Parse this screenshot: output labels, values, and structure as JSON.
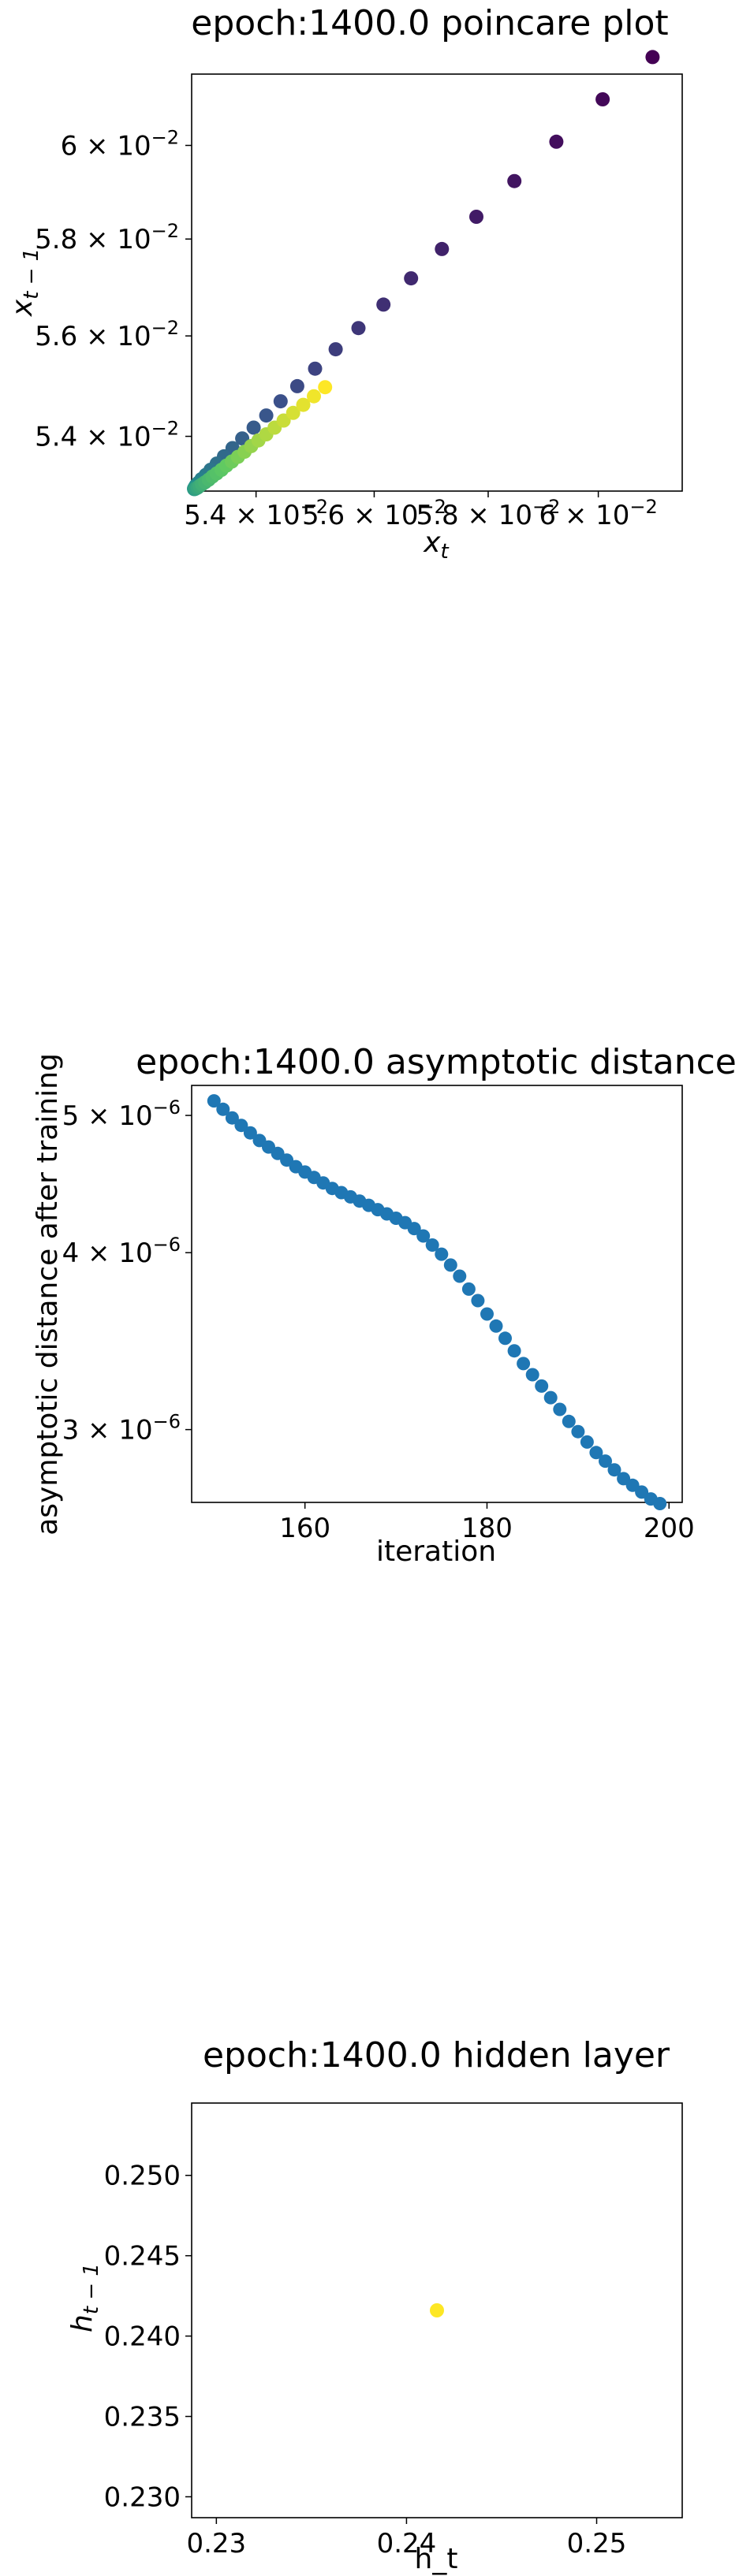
{
  "charts": [
    {
      "chart_data": {
        "type": "scatter",
        "title": "epoch:1400.0 poincare plot",
        "xlabel": "x_t",
        "ylabel": "x_{t−1}",
        "xscale": "log",
        "yscale": "log",
        "xlim": [
          0.05294,
          0.06157
        ],
        "ylim": [
          0.05294,
          0.06157
        ],
        "x_ticks": [
          {
            "mantissa": "5.4",
            "value": 0.054
          },
          {
            "mantissa": "5.6",
            "value": 0.056
          },
          {
            "mantissa": "5.8",
            "value": 0.058
          },
          {
            "mantissa": "6",
            "value": 0.06
          }
        ],
        "y_ticks": [
          {
            "mantissa": "5.4",
            "value": 0.054
          },
          {
            "mantissa": "5.6",
            "value": 0.056
          },
          {
            "mantissa": "5.8",
            "value": 0.058
          },
          {
            "mantissa": "6",
            "value": 0.06
          }
        ],
        "tick_base": "10",
        "tick_exponent": "−2",
        "colormap": [
          "#440154",
          "#3b528b",
          "#21918c",
          "#5ec962",
          "#fde725"
        ],
        "colors_note": "points colored by iteration (viridis)",
        "x": [
          0.06101,
          0.06008,
          0.05923,
          0.05847,
          0.05779,
          0.05718,
          0.05664,
          0.05616,
          0.05573,
          0.05534,
          0.05499,
          0.05469,
          0.05441,
          0.05417,
          0.05396,
          0.05377,
          0.05361,
          0.05347,
          0.05335,
          0.05325,
          0.05317,
          0.0531,
          0.05305,
          0.05301,
          0.05299,
          0.05298,
          0.05298,
          0.05299,
          0.05301,
          0.05304,
          0.05307,
          0.05311,
          0.05316,
          0.05322,
          0.05328,
          0.05335,
          0.05343,
          0.05351,
          0.0536,
          0.0537,
          0.05381,
          0.05392,
          0.05404,
          0.05417,
          0.05431,
          0.05446,
          0.05462,
          0.05479,
          0.05497,
          0.05516
        ],
        "y": [
          0.06195,
          0.06101,
          0.06008,
          0.05923,
          0.05847,
          0.05779,
          0.05718,
          0.05664,
          0.05616,
          0.05573,
          0.05534,
          0.05499,
          0.05469,
          0.05441,
          0.05417,
          0.05396,
          0.05377,
          0.05361,
          0.05347,
          0.05335,
          0.05325,
          0.05317,
          0.0531,
          0.05305,
          0.05301,
          0.05299,
          0.05298,
          0.05298,
          0.05299,
          0.05301,
          0.05304,
          0.05307,
          0.05311,
          0.05316,
          0.05322,
          0.05328,
          0.05335,
          0.05343,
          0.05351,
          0.0536,
          0.0537,
          0.05381,
          0.05392,
          0.05404,
          0.05417,
          0.05431,
          0.05446,
          0.05462,
          0.05479,
          0.05497
        ]
      }
    },
    {
      "chart_data": {
        "type": "scatter",
        "title": "epoch:1400.0 asymptotic distance",
        "xlabel": "iteration",
        "ylabel": "asymptotic distance after training",
        "yscale": "log",
        "xlim": [
          147.55,
          201.45
        ],
        "ylim": [
          2.665e-06,
          5.25e-06
        ],
        "x_ticks": [
          160,
          180,
          200
        ],
        "y_ticks": [
          {
            "mantissa": "3",
            "value": 3e-06
          },
          {
            "mantissa": "4",
            "value": 4e-06
          },
          {
            "mantissa": "5",
            "value": 5e-06
          }
        ],
        "tick_base": "10",
        "tick_exponent": "−6",
        "color": "#1f77b4",
        "x": [
          150,
          151,
          152,
          153,
          154,
          155,
          156,
          157,
          158,
          159,
          160,
          161,
          162,
          163,
          164,
          165,
          166,
          167,
          168,
          169,
          170,
          171,
          172,
          173,
          174,
          175,
          176,
          177,
          178,
          179,
          180,
          181,
          182,
          183,
          184,
          185,
          186,
          187,
          188,
          189,
          190,
          191,
          192,
          193,
          194,
          195,
          196,
          197,
          198,
          199
        ],
        "y": [
          5.12e-06,
          5.05e-06,
          4.98e-06,
          4.92e-06,
          4.86e-06,
          4.8e-06,
          4.75e-06,
          4.7e-06,
          4.65e-06,
          4.6e-06,
          4.56e-06,
          4.52e-06,
          4.48e-06,
          4.44e-06,
          4.41e-06,
          4.38e-06,
          4.35e-06,
          4.32e-06,
          4.29e-06,
          4.26e-06,
          4.23e-06,
          4.2e-06,
          4.16e-06,
          4.11e-06,
          4.05e-06,
          3.99e-06,
          3.92e-06,
          3.85e-06,
          3.77e-06,
          3.7e-06,
          3.62e-06,
          3.55e-06,
          3.48e-06,
          3.41e-06,
          3.34e-06,
          3.28e-06,
          3.22e-06,
          3.16e-06,
          3.1e-06,
          3.04e-06,
          2.99e-06,
          2.94e-06,
          2.89e-06,
          2.85e-06,
          2.81e-06,
          2.77e-06,
          2.74e-06,
          2.71e-06,
          2.68e-06,
          2.66e-06
        ]
      }
    },
    {
      "chart_data": {
        "type": "scatter",
        "title": "epoch:1400.0 hidden layer",
        "xlabel": "h_t",
        "ylabel": "h_{t−1}",
        "xlim": [
          0.2287,
          0.2545
        ],
        "ylim": [
          0.2287,
          0.2545
        ],
        "x_ticks": [
          "0.23",
          "0.24",
          "0.25"
        ],
        "y_ticks": [
          "0.230",
          "0.235",
          "0.240",
          "0.245",
          "0.250"
        ],
        "color": "#fde725",
        "x": [
          0.2416
        ],
        "y": [
          0.2416
        ]
      }
    }
  ]
}
